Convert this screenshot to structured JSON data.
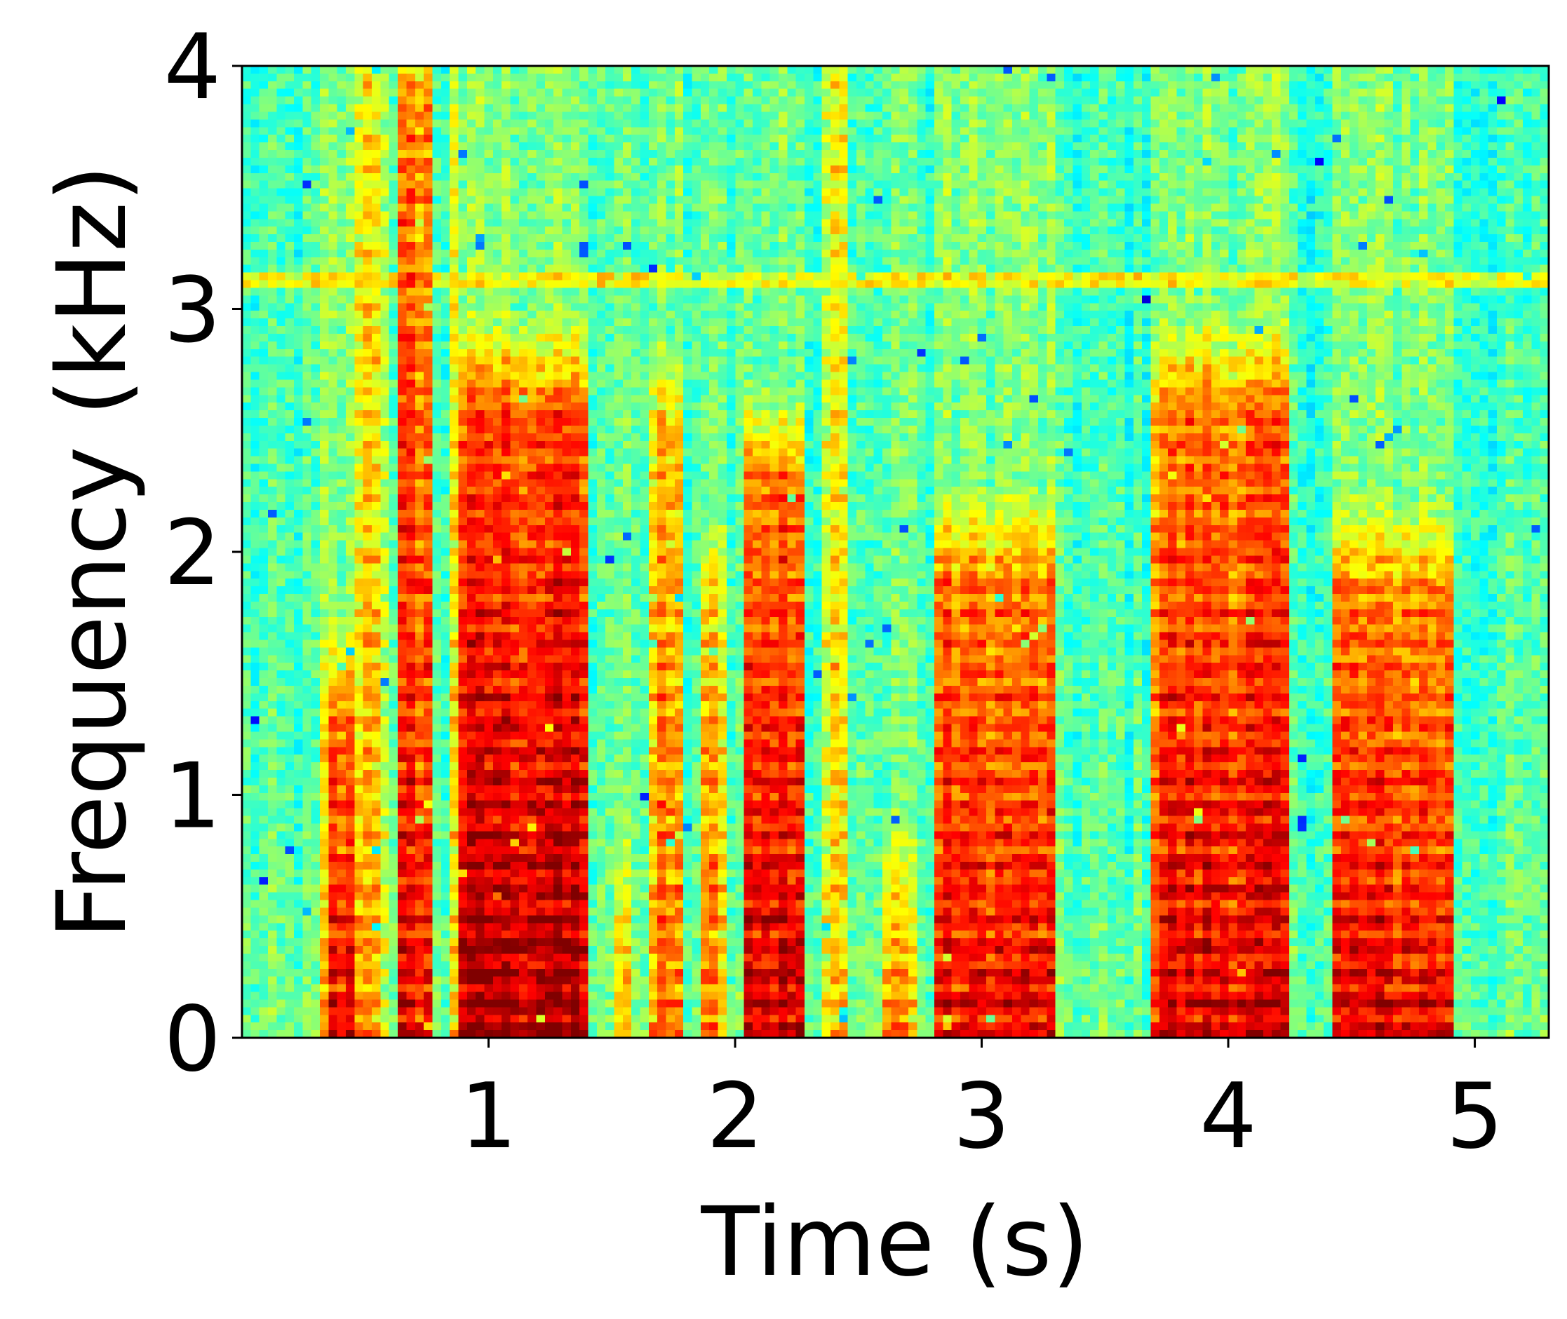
{
  "chart_data": {
    "type": "heatmap",
    "title": "",
    "xlabel": "Time (s)",
    "ylabel": "Frequency (kHz)",
    "xlim": [
      0,
      5.3
    ],
    "ylim": [
      0,
      4
    ],
    "x_ticks": [
      1,
      2,
      3,
      4,
      5
    ],
    "y_ticks": [
      0,
      1,
      2,
      3,
      4
    ],
    "colormap": "jet",
    "grid": false,
    "legend": "none",
    "colorbar": false,
    "time_step_s": 0.035,
    "freq_step_khz": 0.0314,
    "speech_segments": [
      {
        "t0": 0.33,
        "t1": 0.48,
        "f_top": 1.35,
        "level": 0.88
      },
      {
        "t0": 0.46,
        "t1": 0.58,
        "f_top": 4.0,
        "level": 0.72
      },
      {
        "t0": 0.63,
        "t1": 0.78,
        "f_top": 3.85,
        "level": 0.87
      },
      {
        "t0": 0.83,
        "t1": 0.88,
        "f_top": 4.0,
        "level": 0.68
      },
      {
        "t0": 0.86,
        "t1": 1.4,
        "f_top": 2.6,
        "level": 0.96
      },
      {
        "t0": 1.5,
        "t1": 1.58,
        "f_top": 0.55,
        "level": 0.7
      },
      {
        "t0": 1.65,
        "t1": 1.78,
        "f_top": 2.5,
        "level": 0.8
      },
      {
        "t0": 1.85,
        "t1": 1.95,
        "f_top": 1.8,
        "level": 0.78
      },
      {
        "t0": 2.03,
        "t1": 2.28,
        "f_top": 2.3,
        "level": 0.94
      },
      {
        "t0": 2.35,
        "t1": 2.45,
        "f_top": 4.0,
        "level": 0.66
      },
      {
        "t0": 2.58,
        "t1": 2.72,
        "f_top": 0.55,
        "level": 0.76
      },
      {
        "t0": 2.8,
        "t1": 3.3,
        "f_top": 1.9,
        "level": 0.88
      },
      {
        "t0": 3.68,
        "t1": 4.25,
        "f_top": 2.6,
        "level": 0.9
      },
      {
        "t0": 4.4,
        "t1": 4.9,
        "f_top": 1.85,
        "level": 0.88
      }
    ],
    "harmonic_bands_khz": [
      3.12
    ],
    "level_range": [
      0,
      1
    ]
  }
}
